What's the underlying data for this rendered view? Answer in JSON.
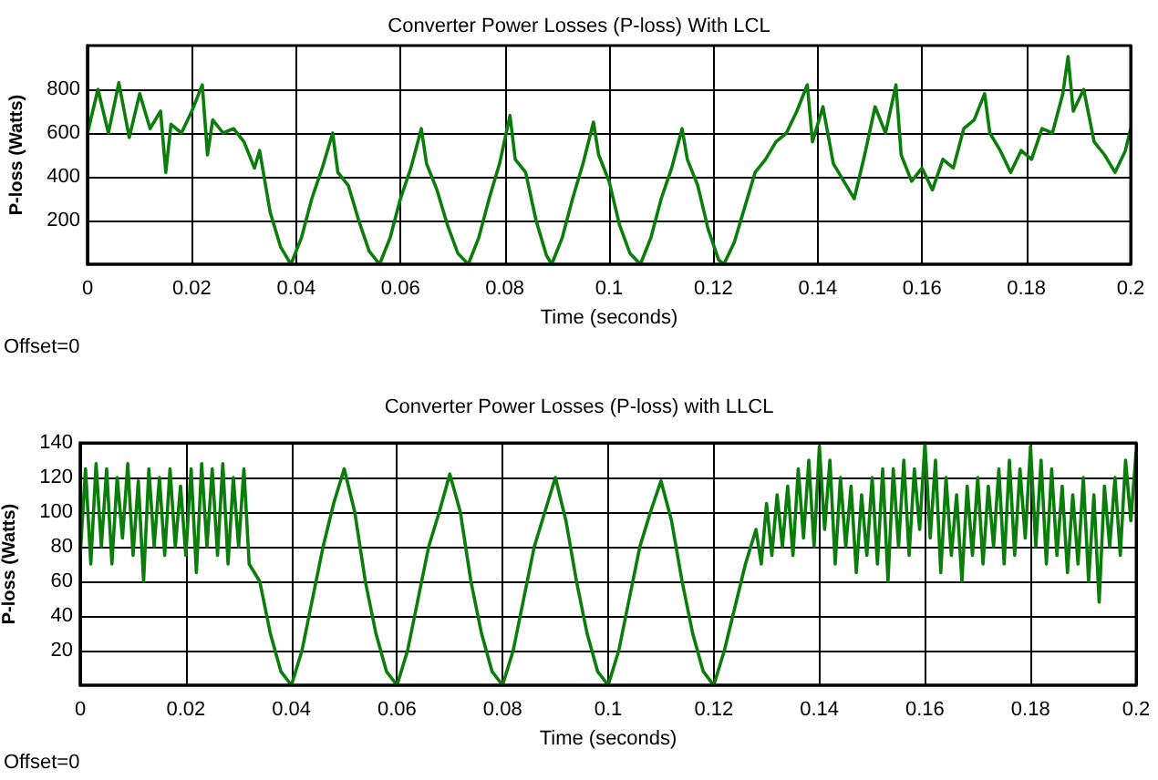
{
  "chart_data": [
    {
      "type": "line",
      "title": "Converter Power Losses (P-loss) With LCL",
      "xlabel": "Time (seconds)",
      "ylabel": "P-loss (Watts)",
      "annotations": [
        "Offset=0"
      ],
      "xlim": [
        0,
        0.2
      ],
      "xticks": [
        0,
        0.02,
        0.04,
        0.06,
        0.08,
        0.1,
        0.12,
        0.14,
        0.16,
        0.18,
        0.2
      ],
      "ylim": [
        0,
        1000
      ],
      "yticks": [
        200,
        400,
        600,
        800
      ],
      "grid": true,
      "marker": "none",
      "line_style": "solid",
      "series": [
        {
          "color": "#0a7d0a",
          "x": [
            0,
            0.002,
            0.004,
            0.006,
            0.008,
            0.01,
            0.012,
            0.014,
            0.015,
            0.016,
            0.018,
            0.02,
            0.022,
            0.023,
            0.024,
            0.026,
            0.028,
            0.03,
            0.032,
            0.033,
            0.035,
            0.037,
            0.039,
            0.041,
            0.043,
            0.045,
            0.047,
            0.048,
            0.05,
            0.052,
            0.054,
            0.056,
            0.058,
            0.06,
            0.062,
            0.064,
            0.065,
            0.067,
            0.069,
            0.071,
            0.073,
            0.075,
            0.077,
            0.079,
            0.081,
            0.082,
            0.084,
            0.086,
            0.088,
            0.089,
            0.091,
            0.093,
            0.095,
            0.097,
            0.098,
            0.1,
            0.102,
            0.104,
            0.106,
            0.108,
            0.11,
            0.112,
            0.114,
            0.115,
            0.117,
            0.119,
            0.121,
            0.122,
            0.124,
            0.126,
            0.128,
            0.13,
            0.132,
            0.134,
            0.136,
            0.138,
            0.139,
            0.141,
            0.143,
            0.145,
            0.147,
            0.149,
            0.151,
            0.153,
            0.155,
            0.156,
            0.158,
            0.16,
            0.162,
            0.164,
            0.166,
            0.168,
            0.17,
            0.172,
            0.173,
            0.175,
            0.177,
            0.179,
            0.181,
            0.183,
            0.185,
            0.187,
            0.188,
            0.189,
            0.191,
            0.193,
            0.195,
            0.197,
            0.199,
            0.2
          ],
          "values": [
            600,
            800,
            600,
            830,
            580,
            780,
            620,
            700,
            420,
            640,
            600,
            700,
            820,
            500,
            660,
            600,
            620,
            560,
            440,
            520,
            240,
            80,
            0,
            120,
            300,
            440,
            600,
            420,
            360,
            200,
            60,
            0,
            120,
            300,
            440,
            620,
            460,
            340,
            180,
            50,
            0,
            120,
            300,
            460,
            680,
            480,
            420,
            200,
            40,
            0,
            120,
            300,
            460,
            650,
            500,
            380,
            180,
            50,
            0,
            120,
            300,
            440,
            620,
            480,
            360,
            160,
            20,
            0,
            100,
            260,
            420,
            480,
            560,
            600,
            700,
            820,
            560,
            720,
            460,
            380,
            300,
            500,
            720,
            600,
            820,
            500,
            380,
            440,
            340,
            480,
            440,
            620,
            660,
            780,
            600,
            520,
            420,
            520,
            480,
            620,
            600,
            780,
            950,
            700,
            800,
            560,
            500,
            420,
            520,
            620
          ]
        }
      ]
    },
    {
      "type": "line",
      "title": "Converter Power Losses (P-loss) with LLCL",
      "xlabel": "Time (seconds)",
      "ylabel": "P-loss (Watts)",
      "annotations": [
        "Offset=0"
      ],
      "xlim": [
        0,
        0.2
      ],
      "xticks": [
        0,
        0.02,
        0.04,
        0.06,
        0.08,
        0.1,
        0.12,
        0.14,
        0.16,
        0.18,
        0.2
      ],
      "ylim": [
        0,
        140
      ],
      "yticks": [
        20,
        40,
        60,
        80,
        100,
        120,
        140
      ],
      "grid": true,
      "marker": "none",
      "line_style": "solid",
      "series": [
        {
          "color": "#0a7d0a",
          "x": [
            0,
            0.001,
            0.002,
            0.003,
            0.004,
            0.005,
            0.006,
            0.007,
            0.008,
            0.009,
            0.01,
            0.011,
            0.012,
            0.013,
            0.014,
            0.015,
            0.016,
            0.017,
            0.018,
            0.019,
            0.02,
            0.021,
            0.022,
            0.023,
            0.024,
            0.025,
            0.026,
            0.027,
            0.028,
            0.029,
            0.03,
            0.031,
            0.032,
            0.034,
            0.036,
            0.038,
            0.04,
            0.042,
            0.044,
            0.046,
            0.048,
            0.05,
            0.052,
            0.054,
            0.056,
            0.058,
            0.06,
            0.062,
            0.064,
            0.066,
            0.068,
            0.07,
            0.072,
            0.074,
            0.076,
            0.078,
            0.08,
            0.082,
            0.084,
            0.086,
            0.088,
            0.09,
            0.092,
            0.094,
            0.096,
            0.098,
            0.1,
            0.102,
            0.104,
            0.106,
            0.108,
            0.11,
            0.112,
            0.114,
            0.116,
            0.118,
            0.12,
            0.122,
            0.124,
            0.126,
            0.128,
            0.129,
            0.13,
            0.131,
            0.132,
            0.133,
            0.134,
            0.135,
            0.136,
            0.137,
            0.138,
            0.139,
            0.14,
            0.141,
            0.142,
            0.143,
            0.144,
            0.145,
            0.146,
            0.147,
            0.148,
            0.149,
            0.15,
            0.151,
            0.152,
            0.153,
            0.154,
            0.155,
            0.156,
            0.157,
            0.158,
            0.159,
            0.16,
            0.161,
            0.162,
            0.163,
            0.164,
            0.165,
            0.166,
            0.167,
            0.168,
            0.169,
            0.17,
            0.171,
            0.172,
            0.173,
            0.174,
            0.175,
            0.176,
            0.177,
            0.178,
            0.179,
            0.18,
            0.181,
            0.182,
            0.183,
            0.184,
            0.185,
            0.186,
            0.187,
            0.188,
            0.189,
            0.19,
            0.191,
            0.192,
            0.193,
            0.194,
            0.195,
            0.196,
            0.197,
            0.198,
            0.199,
            0.2
          ],
          "values": [
            75,
            125,
            70,
            128,
            80,
            125,
            70,
            120,
            85,
            128,
            75,
            118,
            60,
            125,
            80,
            120,
            75,
            125,
            80,
            115,
            75,
            125,
            65,
            128,
            80,
            125,
            75,
            128,
            70,
            120,
            80,
            125,
            70,
            60,
            30,
            8,
            0,
            20,
            50,
            80,
            105,
            125,
            100,
            60,
            30,
            8,
            0,
            20,
            50,
            80,
            100,
            122,
            100,
            60,
            30,
            8,
            0,
            20,
            50,
            80,
            100,
            120,
            95,
            60,
            30,
            8,
            0,
            20,
            50,
            80,
            100,
            118,
            95,
            60,
            30,
            8,
            0,
            20,
            45,
            70,
            90,
            70,
            105,
            75,
            110,
            80,
            115,
            75,
            125,
            85,
            130,
            80,
            138,
            90,
            130,
            70,
            120,
            80,
            115,
            65,
            110,
            75,
            120,
            70,
            125,
            60,
            125,
            80,
            130,
            75,
            125,
            90,
            140,
            85,
            130,
            65,
            120,
            75,
            110,
            60,
            115,
            75,
            120,
            70,
            115,
            80,
            125,
            70,
            130,
            75,
            125,
            85,
            138,
            80,
            130,
            70,
            125,
            75,
            115,
            65,
            110,
            70,
            120,
            60,
            110,
            48,
            115,
            80,
            120,
            75,
            130,
            95,
            135
          ]
        }
      ]
    }
  ]
}
